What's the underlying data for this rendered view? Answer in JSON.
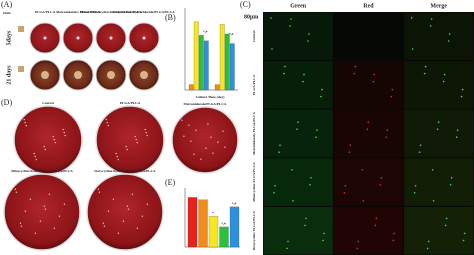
{
  "panel_a": {
    "label": "(A)",
    "scale": "6mm",
    "columns": [
      "PLGA/PLCA",
      "Metronidazole/ PLGA/PLCA",
      "Minocycline hydrochloride/PLGA/PLCA",
      "Doxycycline hydrochloride/PLGA/PLCA"
    ],
    "rows": [
      "5days",
      "21 days"
    ]
  },
  "panel_b": {
    "label": "(B)",
    "x_label": "Culture Time (day)",
    "annotations": [
      "*,#",
      "*,#"
    ],
    "colors": [
      "#f08c1a",
      "#f5e61e",
      "#2fbf3a",
      "#2f8fe0"
    ],
    "groups": [
      [
        8,
        100,
        80,
        72
      ],
      [
        8,
        96,
        82,
        68
      ]
    ],
    "ylim": [
      0,
      120
    ]
  },
  "panel_c": {
    "label": "(C)",
    "scale": "80μm",
    "columns": [
      "Green",
      "Red",
      "Merge"
    ],
    "rows": [
      "Control",
      "PLGA/PLCA",
      "Metronidazole PLGA/PLCA",
      "Minocycline PLGA/PLCA",
      "Doxycycline PLGA/PLCA"
    ]
  },
  "panel_d": {
    "label": "(D)",
    "plates": [
      "Control",
      "PLGA/PLCA",
      "Metronidazole/PLGA/PLCA",
      "Minocycline hydrochloride/PLGA/PLCA",
      "Doxycycline hydrochloride/PLGA/PLCA"
    ]
  },
  "panel_e": {
    "label": "(E)",
    "annotations": [
      "*",
      "*,#",
      "*,#"
    ],
    "colors": [
      "#e8231e",
      "#f08c1a",
      "#f5e61e",
      "#2fbf3a",
      "#2f8fe0"
    ],
    "values": [
      4.2,
      4.0,
      2.6,
      1.7,
      3.4
    ],
    "ylim": [
      0,
      5
    ]
  }
}
